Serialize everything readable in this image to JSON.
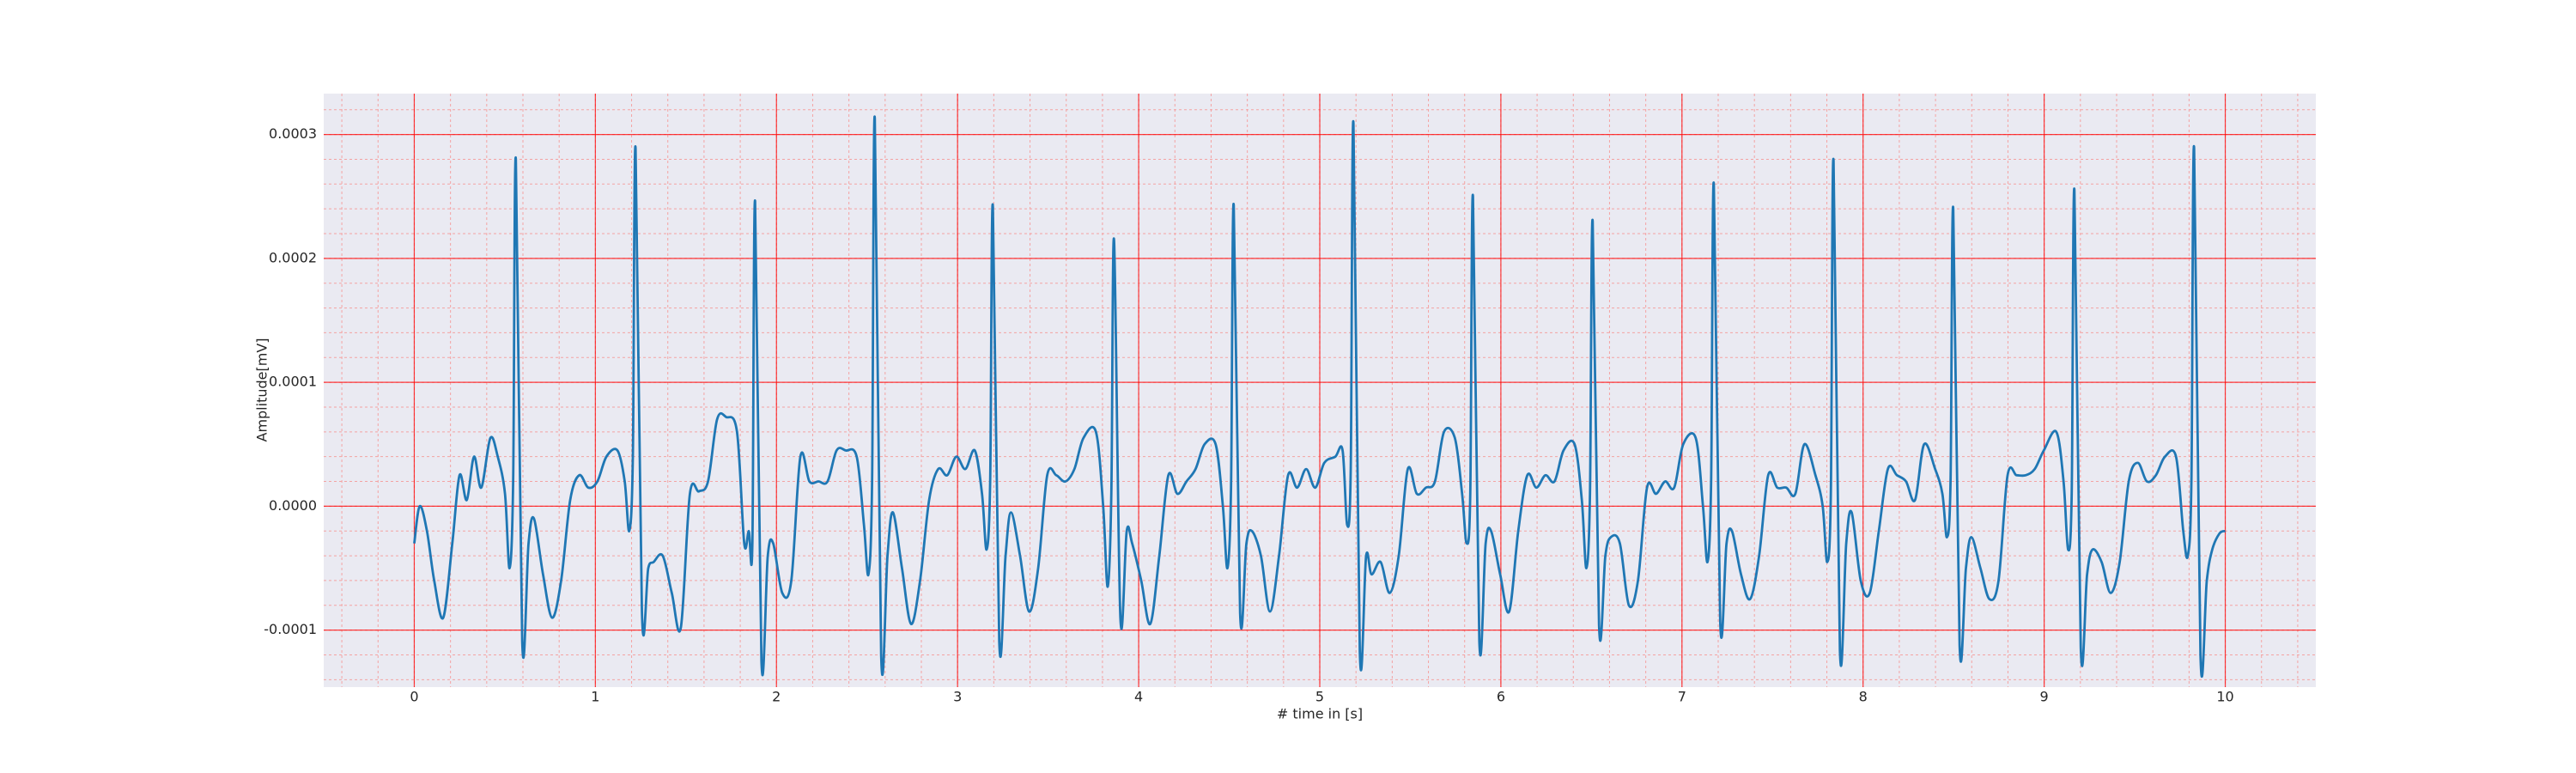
{
  "chart_data": {
    "type": "line",
    "x_label": "# time in [s]",
    "y_label": "Amplitude[mV]",
    "xlim": [
      -0.5,
      10.5
    ],
    "ylim": [
      -0.000146,
      0.000333
    ],
    "xticks": [
      0,
      1,
      2,
      3,
      4,
      5,
      6,
      7,
      8,
      9,
      10
    ],
    "yticks": [
      -0.0001,
      {
        "value": 0,
        "label": "0.0000"
      },
      0.0001,
      0.0002,
      0.0003
    ],
    "x_minor_ticks": [
      -0.4,
      -0.2,
      0,
      0.2,
      0.4,
      0.6,
      0.8,
      1,
      1.2,
      1.4,
      1.6,
      1.8,
      2,
      2.2,
      2.4,
      2.6,
      2.8,
      3,
      3.2,
      3.4,
      3.6,
      3.8,
      4,
      4.2,
      4.4,
      4.6,
      4.8,
      5,
      5.2,
      5.4,
      5.6,
      5.8,
      6,
      6.2,
      6.4,
      6.6,
      6.8,
      7,
      7.2,
      7.4,
      7.6,
      7.8,
      8,
      8.2,
      8.4,
      8.6,
      8.8,
      9,
      9.2,
      9.4,
      9.6,
      9.8,
      10,
      10.2,
      10.4
    ],
    "y_minor_ticks": [
      -0.00014,
      -0.00012,
      -0.0001,
      -8e-05,
      -6e-05,
      -4e-05,
      -2e-05,
      0,
      2e-05,
      4e-05,
      6e-05,
      8e-05,
      0.0001,
      0.00012,
      0.00014,
      0.00016,
      0.00018,
      0.0002,
      0.00022,
      0.00024,
      0.00026,
      0.00028,
      0.0003,
      0.00032
    ],
    "grid": true,
    "minor_grid": true,
    "color": "#1f77b4",
    "x": [
      0,
      0.03,
      0.07,
      0.11,
      0.16,
      0.21,
      0.25,
      0.29,
      0.33,
      0.37,
      0.42,
      0.461,
      0.501,
      0.526,
      0.546,
      0.561,
      0.596,
      0.631,
      0.661,
      0.711,
      0.761,
      0.811,
      0.861,
      0.911,
      0.961,
      1.011,
      1.061,
      1.122,
      1.162,
      1.187,
      1.207,
      1.222,
      1.257,
      1.292,
      1.322,
      1.372,
      1.422,
      1.472,
      1.522,
      1.572,
      1.622,
      1.672,
      1.722,
      1.782,
      1.822,
      1.847,
      1.867,
      1.882,
      1.917,
      1.952,
      1.982,
      2.032,
      2.082,
      2.132,
      2.182,
      2.232,
      2.282,
      2.332,
      2.382,
      2.443,
      2.483,
      2.508,
      2.528,
      2.543,
      2.578,
      2.613,
      2.643,
      2.693,
      2.743,
      2.793,
      2.843,
      2.893,
      2.943,
      2.993,
      3.043,
      3.095,
      3.135,
      3.16,
      3.18,
      3.195,
      3.23,
      3.265,
      3.295,
      3.345,
      3.395,
      3.445,
      3.495,
      3.545,
      3.595,
      3.645,
      3.695,
      3.764,
      3.804,
      3.829,
      3.849,
      3.864,
      3.899,
      3.934,
      3.964,
      4.014,
      4.064,
      4.114,
      4.164,
      4.214,
      4.264,
      4.314,
      4.364,
      4.425,
      4.465,
      4.49,
      4.51,
      4.525,
      4.56,
      4.595,
      4.625,
      4.675,
      4.725,
      4.775,
      4.825,
      4.875,
      4.925,
      4.975,
      5.025,
      5.086,
      5.126,
      5.151,
      5.171,
      5.186,
      5.221,
      5.256,
      5.286,
      5.336,
      5.386,
      5.436,
      5.486,
      5.536,
      5.586,
      5.636,
      5.686,
      5.746,
      5.786,
      5.811,
      5.831,
      5.846,
      5.881,
      5.916,
      5.946,
      5.996,
      6.046,
      6.096,
      6.146,
      6.196,
      6.246,
      6.296,
      6.346,
      6.407,
      6.447,
      6.472,
      6.492,
      6.507,
      6.542,
      6.577,
      6.607,
      6.657,
      6.707,
      6.757,
      6.807,
      6.857,
      6.907,
      6.957,
      7.007,
      7.076,
      7.116,
      7.141,
      7.161,
      7.176,
      7.211,
      7.246,
      7.276,
      7.326,
      7.376,
      7.426,
      7.476,
      7.526,
      7.576,
      7.626,
      7.676,
      7.737,
      7.777,
      7.802,
      7.822,
      7.837,
      7.872,
      7.907,
      7.937,
      7.987,
      8.037,
      8.087,
      8.137,
      8.187,
      8.237,
      8.287,
      8.337,
      8.398,
      8.438,
      8.463,
      8.483,
      8.498,
      8.533,
      8.568,
      8.598,
      8.648,
      8.698,
      8.748,
      8.798,
      8.848,
      8.898,
      8.948,
      8.998,
      9.067,
      9.107,
      9.132,
      9.152,
      9.167,
      9.202,
      9.237,
      9.267,
      9.317,
      9.367,
      9.417,
      9.467,
      9.517,
      9.567,
      9.617,
      9.667,
      9.728,
      9.768,
      9.793,
      9.813,
      9.828,
      9.863,
      9.898,
      9.928,
      9.968,
      10.0
    ],
    "values": [
      -3e-05,
      0,
      -2e-05,
      -6e-05,
      -9e-05,
      -3e-05,
      2.5e-05,
      5e-06,
      4e-05,
      1.5e-05,
      5.5e-05,
      4e-05,
      1e-05,
      -5e-05,
      2e-05,
      0.00028,
      -0.000109,
      -3e-05,
      -1e-05,
      -5.5e-05,
      -9e-05,
      -6e-05,
      5e-06,
      2.5e-05,
      1.5e-05,
      2e-05,
      4e-05,
      4.5e-05,
      2e-05,
      -2e-05,
      4e-05,
      0.000289,
      -8.5e-05,
      -5e-05,
      -4.5e-05,
      -4e-05,
      -7e-05,
      -9.8e-05,
      1e-05,
      1.2e-05,
      2e-05,
      7e-05,
      7.2e-05,
      6e-05,
      -3e-05,
      -2e-05,
      -3e-05,
      0.000246,
      -0.000125,
      -4e-05,
      -3e-05,
      -7e-05,
      -6e-05,
      4e-05,
      2e-05,
      2e-05,
      2e-05,
      4.5e-05,
      4.5e-05,
      4e-05,
      -1.5e-05,
      -5.5e-05,
      2e-05,
      0.000313,
      -0.00012,
      -4e-05,
      -5e-06,
      -5e-05,
      -9.5e-05,
      -6e-05,
      5e-06,
      3e-05,
      2.5e-05,
      4e-05,
      3e-05,
      4.5e-05,
      1e-05,
      -3.5e-05,
      2e-05,
      0.000242,
      -0.000109,
      -4e-05,
      -5e-06,
      -4e-05,
      -8.5e-05,
      -5e-05,
      2.5e-05,
      2.5e-05,
      2e-05,
      3e-05,
      5.5e-05,
      6e-05,
      0,
      -6.5e-05,
      1e-05,
      0.000215,
      -9e-05,
      -2e-05,
      -3e-05,
      -6e-05,
      -9.5e-05,
      -4e-05,
      2.5e-05,
      1e-05,
      2e-05,
      3e-05,
      5e-05,
      5e-05,
      0,
      -5e-05,
      1.5e-05,
      0.000243,
      -8.6e-05,
      -3e-05,
      -2e-05,
      -4e-05,
      -8.5e-05,
      -4e-05,
      2.5e-05,
      1.5e-05,
      3e-05,
      1.5e-05,
      3.5e-05,
      4e-05,
      4.5e-05,
      -1.5e-05,
      3e-05,
      0.000309,
      -0.000117,
      -4e-05,
      -5.5e-05,
      -4.5e-05,
      -7e-05,
      -4e-05,
      3e-05,
      1e-05,
      1.5e-05,
      2e-05,
      6e-05,
      5.5e-05,
      1e-05,
      -3e-05,
      1e-05,
      0.00025,
      -0.000109,
      -3e-05,
      -2e-05,
      -5.5e-05,
      -8.5e-05,
      -2e-05,
      2.5e-05,
      1.5e-05,
      2.5e-05,
      2e-05,
      4.5e-05,
      5e-05,
      5e-06,
      -5e-05,
      1e-05,
      0.00023,
      -9.6e-05,
      -4e-05,
      -2.5e-05,
      -3e-05,
      -8e-05,
      -6e-05,
      1.5e-05,
      1e-05,
      2e-05,
      1.5e-05,
      5e-05,
      5.5e-05,
      0,
      -4.5e-05,
      2e-05,
      0.00026,
      -9.3e-05,
      -3e-05,
      -2e-05,
      -5.5e-05,
      -7.5e-05,
      -4e-05,
      2.5e-05,
      1.5e-05,
      1.5e-05,
      1e-05,
      5e-05,
      2.5e-05,
      0,
      -4.5e-05,
      1e-05,
      0.000279,
      -0.000116,
      -3e-05,
      -5e-06,
      -6e-05,
      -7e-05,
      -2e-05,
      3e-05,
      2.5e-05,
      2e-05,
      5e-06,
      5e-05,
      3e-05,
      1e-05,
      -2.5e-05,
      2e-05,
      0.00024,
      -0.000112,
      -5e-05,
      -2.5e-05,
      -5e-05,
      -7.5e-05,
      -6e-05,
      2.5e-05,
      2.5e-05,
      2.5e-05,
      3e-05,
      4.5e-05,
      6e-05,
      2e-05,
      -3.5e-05,
      1e-05,
      0.000255,
      -0.000114,
      -5.5e-05,
      -3.5e-05,
      -4.5e-05,
      -7e-05,
      -4.5e-05,
      2e-05,
      3.5e-05,
      2e-05,
      2.5e-05,
      4e-05,
      4e-05,
      -2e-05,
      -4e-05,
      2e-05,
      0.000289,
      -0.00012,
      -6e-05,
      -3.5e-05,
      -2.2e-05,
      -2e-05
    ]
  }
}
